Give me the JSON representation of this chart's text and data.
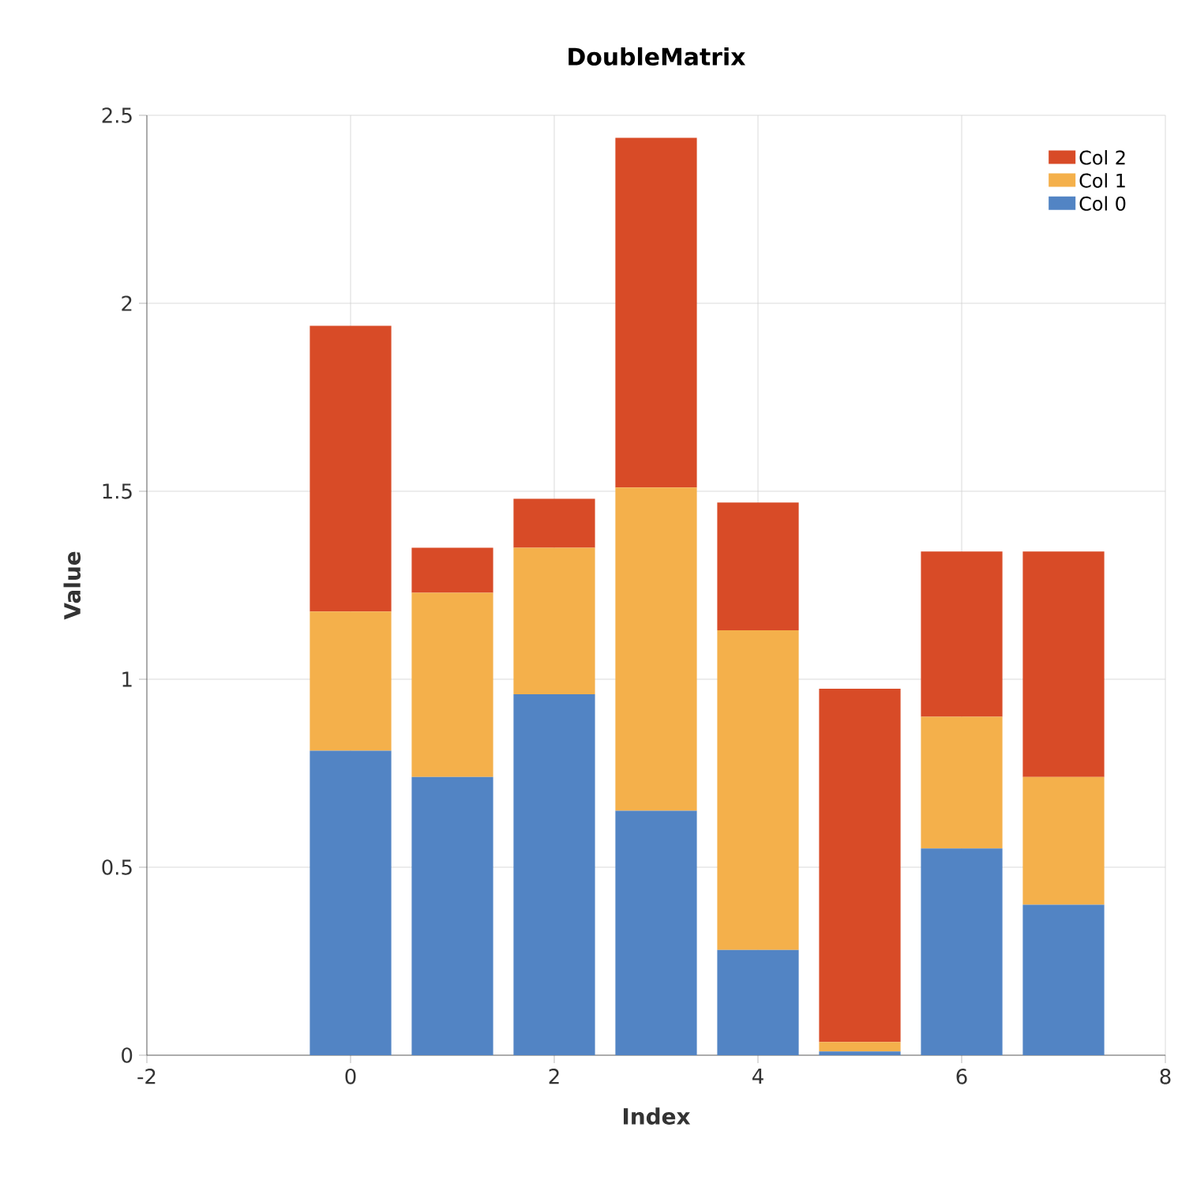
{
  "chart_data": {
    "type": "bar",
    "title": "DoubleMatrix",
    "xlabel": "Index",
    "ylabel": "Value",
    "stacked": true,
    "x": [
      0,
      1,
      2,
      3,
      4,
      5,
      6,
      7
    ],
    "series": [
      {
        "name": "Col 0",
        "color": "#5284c4",
        "values": [
          0.81,
          0.74,
          0.96,
          0.65,
          0.28,
          0.01,
          0.55,
          0.4
        ]
      },
      {
        "name": "Col 1",
        "color": "#f4b04b",
        "values": [
          0.37,
          0.49,
          0.39,
          0.86,
          0.85,
          0.025,
          0.35,
          0.34
        ]
      },
      {
        "name": "Col 2",
        "color": "#d84b27",
        "values": [
          0.76,
          0.12,
          0.13,
          0.93,
          0.34,
          0.94,
          0.44,
          0.6
        ]
      }
    ],
    "xlim": [
      -2,
      8
    ],
    "xticks": [
      -2,
      0,
      2,
      4,
      6,
      8
    ],
    "ylim": [
      0,
      2.5
    ],
    "yticks": [
      0,
      0.5,
      1,
      1.5,
      2,
      2.5
    ],
    "grid": true,
    "legend": "top right"
  }
}
